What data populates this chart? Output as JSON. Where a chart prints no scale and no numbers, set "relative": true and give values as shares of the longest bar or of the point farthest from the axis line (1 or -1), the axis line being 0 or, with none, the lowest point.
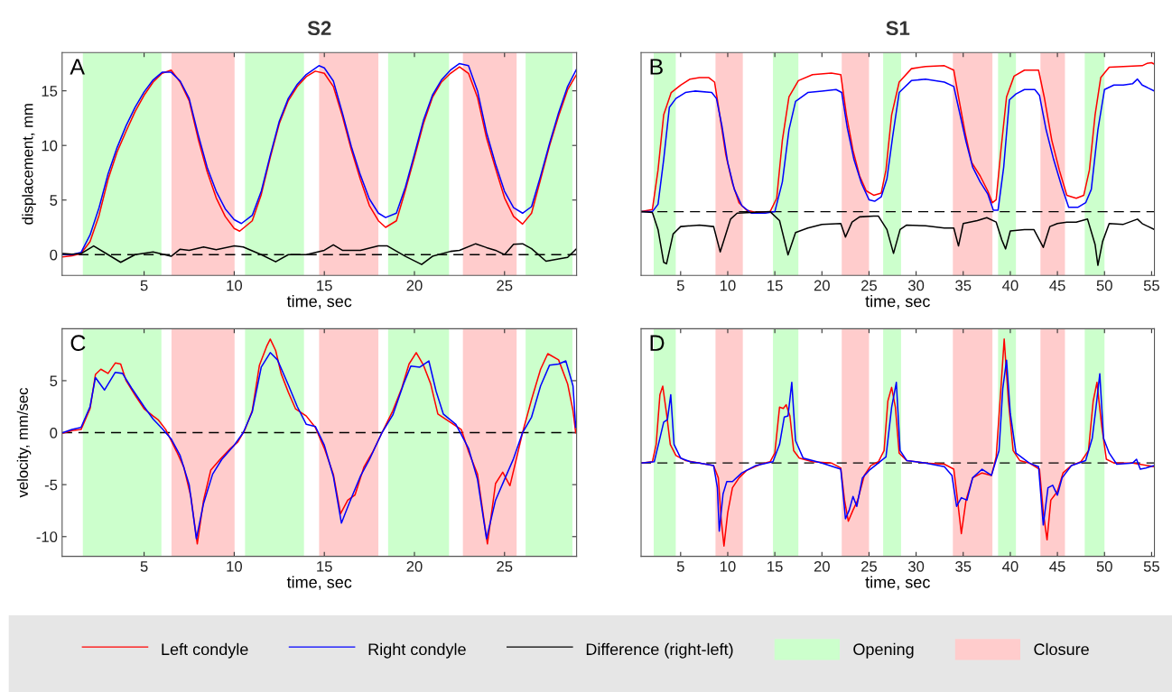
{
  "chart_data": [
    {
      "type": "line",
      "title": "S2",
      "xlabel": "time, sec",
      "ylabel": "displacement, mm",
      "annotations": [
        "A"
      ],
      "legend": "bottom",
      "xlim": [
        0.45,
        29
      ],
      "ylim": [
        -1.9,
        18.5
      ],
      "xticks": [
        5,
        10,
        15,
        20,
        25
      ],
      "yticks": [
        0,
        5,
        10,
        15
      ],
      "series": [
        {
          "name": "Left condyle",
          "color": "#ff0000",
          "x": [
            0.5,
            1,
            1.5,
            2,
            2.5,
            3,
            3.5,
            4,
            4.5,
            5,
            5.5,
            6,
            6.5,
            7,
            7.5,
            8,
            8.5,
            9,
            9.5,
            10,
            10.3,
            11,
            11.5,
            12,
            12.5,
            13,
            13.5,
            14,
            14.5,
            15,
            15.5,
            16,
            16.5,
            17,
            17.5,
            18,
            18.4,
            19,
            19.5,
            20,
            20.5,
            21,
            21.5,
            22,
            22.5,
            23,
            23.5,
            24,
            24.5,
            25,
            25.5,
            26,
            26.5,
            27,
            27.5,
            28,
            28.5,
            29
          ],
          "values": [
            -0.2,
            -0.1,
            0.1,
            1.2,
            3.6,
            6.9,
            9.4,
            11.3,
            13.1,
            14.6,
            15.8,
            16.6,
            16.9,
            15.8,
            14.1,
            10.6,
            7.6,
            5.2,
            3.5,
            2.4,
            2.15,
            3.1,
            5.5,
            8.9,
            12,
            14.1,
            15.4,
            16.3,
            16.8,
            16.6,
            15.4,
            12.7,
            9.6,
            6.9,
            4.5,
            3.1,
            2.5,
            3.1,
            5.9,
            8.9,
            12,
            14.4,
            15.8,
            16.6,
            17.2,
            16.6,
            14.4,
            10.7,
            7.9,
            5.2,
            3.5,
            2.8,
            3.8,
            6.9,
            10,
            12.7,
            15.1,
            16.5
          ]
        },
        {
          "name": "Right condyle",
          "color": "#0000ff",
          "x": [
            0.5,
            1,
            1.5,
            2,
            2.5,
            3,
            3.5,
            4,
            4.5,
            5,
            5.5,
            6,
            6.5,
            7,
            7.5,
            8,
            8.5,
            9,
            9.5,
            10,
            10.4,
            11,
            11.5,
            12,
            12.5,
            13,
            13.5,
            14,
            14.7,
            15,
            15.5,
            16,
            16.5,
            17,
            17.5,
            18,
            18.4,
            19,
            19.5,
            20,
            20.5,
            21,
            21.5,
            22,
            22.5,
            23,
            23.5,
            24,
            24.5,
            25,
            25.5,
            26,
            26.5,
            27,
            27.5,
            28,
            28.5,
            29
          ],
          "values": [
            0.05,
            0,
            0.2,
            1.8,
            4.3,
            7.4,
            9.8,
            11.8,
            13.5,
            14.9,
            16,
            16.7,
            16.7,
            15.9,
            14.3,
            11,
            8,
            5.8,
            4.2,
            3.2,
            2.85,
            3.6,
            5.8,
            9.1,
            12.2,
            14.3,
            15.6,
            16.5,
            17.3,
            17.1,
            15.9,
            13,
            9.9,
            7.3,
            5.1,
            3.8,
            3.4,
            3.8,
            6.2,
            9.2,
            12.3,
            14.6,
            16,
            16.9,
            17.5,
            17.3,
            15,
            11.2,
            8.3,
            5.8,
            4.3,
            3.8,
            4.4,
            7.2,
            10.2,
            13,
            15.4,
            17
          ]
        },
        {
          "name": "Difference (right-left)",
          "color": "#000000",
          "x": [
            0.5,
            1,
            1.5,
            2.2,
            3,
            3.7,
            4.5,
            5.5,
            6.5,
            7,
            7.5,
            8.3,
            9,
            10,
            10.5,
            11.5,
            12.3,
            13,
            14,
            15,
            15.5,
            16,
            17,
            18,
            18.5,
            19.5,
            20.4,
            21,
            22,
            22.5,
            23.4,
            24,
            24.5,
            25,
            25.5,
            26,
            26.5,
            27.3,
            28,
            28.5,
            29
          ],
          "values": [
            0.1,
            0.05,
            0.1,
            0.8,
            0,
            -0.7,
            0,
            0.25,
            -0.15,
            0.5,
            0.4,
            0.7,
            0.45,
            0.8,
            0.7,
            0,
            -0.65,
            0,
            0,
            0.4,
            0.9,
            0.4,
            0.4,
            0.8,
            0.8,
            -0.15,
            -0.9,
            -0.15,
            0.3,
            0.4,
            1,
            0.65,
            0.4,
            0,
            0.95,
            1,
            0.55,
            -0.6,
            -0.4,
            -0.25,
            0.55
          ]
        }
      ],
      "ref_lines": [
        {
          "axis": "y",
          "value": 0,
          "color": "#000000",
          "line_style": "dashed"
        }
      ],
      "bands": [
        {
          "axis": "x",
          "from": 1.6,
          "to": 5.96,
          "color": "#ccffcc",
          "label": "Opening"
        },
        {
          "axis": "x",
          "from": 6.52,
          "to": 10.02,
          "color": "#ffcccc",
          "label": "Closure"
        },
        {
          "axis": "x",
          "from": 10.6,
          "to": 13.87,
          "color": "#ccffcc"
        },
        {
          "axis": "x",
          "from": 14.71,
          "to": 18.0,
          "color": "#ffcccc"
        },
        {
          "axis": "x",
          "from": 18.54,
          "to": 21.92,
          "color": "#ccffcc"
        },
        {
          "axis": "x",
          "from": 22.69,
          "to": 25.67,
          "color": "#ffcccc"
        },
        {
          "axis": "x",
          "from": 26.17,
          "to": 28.77,
          "color": "#ccffcc"
        }
      ]
    },
    {
      "type": "line",
      "title": "S1",
      "xlabel": "time, sec",
      "annotations": [
        "B"
      ],
      "relative": true,
      "xlim": [
        0.8,
        55.3
      ],
      "xticks": [
        5,
        10,
        15,
        20,
        25,
        30,
        35,
        40,
        45,
        50,
        55
      ],
      "series": [
        {
          "color": "#ff0000",
          "x": [
            0.8,
            2,
            2.6,
            3.2,
            4,
            5,
            6,
            7,
            8,
            8.6,
            9.2,
            9.8,
            10.5,
            11.2,
            12,
            13,
            14.5,
            15.2,
            15.8,
            16.5,
            17.5,
            19,
            21,
            22,
            22.6,
            23.3,
            24,
            24.7,
            25.5,
            26.3,
            26.8,
            27.4,
            28.2,
            29.5,
            31,
            33,
            34,
            34.5,
            35.2,
            35.9,
            36.8,
            37.6,
            38.1,
            38.5,
            39,
            39.6,
            40.4,
            41.5,
            43,
            43.6,
            44.4,
            45.2,
            46,
            47,
            47.8,
            48.4,
            49,
            49.6,
            50.5,
            52,
            54,
            54.5,
            55,
            55.3
          ],
          "values": [
            0,
            0.015,
            0.28,
            0.65,
            0.8,
            0.85,
            0.89,
            0.9,
            0.9,
            0.87,
            0.63,
            0.38,
            0.19,
            0.06,
            0.01,
            -0.005,
            0,
            0.09,
            0.48,
            0.77,
            0.88,
            0.92,
            0.93,
            0.92,
            0.65,
            0.41,
            0.24,
            0.14,
            0.11,
            0.125,
            0.28,
            0.65,
            0.87,
            0.96,
            0.975,
            0.98,
            0.95,
            0.77,
            0.53,
            0.33,
            0.24,
            0.14,
            0.06,
            0.08,
            0.41,
            0.77,
            0.91,
            0.95,
            0.95,
            0.77,
            0.48,
            0.28,
            0.11,
            0.09,
            0.11,
            0.28,
            0.65,
            0.9,
            0.97,
            0.975,
            0.98,
            0.995,
            1,
            0.99
          ]
        },
        {
          "color": "#0000ff",
          "x": [
            0.8,
            2,
            2.6,
            3.2,
            3.8,
            4.5,
            5.5,
            6.5,
            8.3,
            8.8,
            9.4,
            10,
            10.7,
            11.5,
            12.5,
            14,
            15,
            15.8,
            16.5,
            17.2,
            18.5,
            20,
            21.5,
            22.1,
            22.7,
            23.4,
            24.2,
            25,
            25.6,
            26.3,
            26.9,
            27.5,
            28.2,
            29.5,
            31,
            33,
            34,
            34.6,
            35.3,
            36,
            36.8,
            37.6,
            38.2,
            38.7,
            39.3,
            39.9,
            40.6,
            41.5,
            42.6,
            43.1,
            43.8,
            44.6,
            45.5,
            46.2,
            47.2,
            48,
            48.6,
            49.3,
            50,
            51,
            52,
            53,
            53.5,
            54,
            55.3
          ],
          "values": [
            0,
            0,
            0.05,
            0.35,
            0.7,
            0.76,
            0.8,
            0.81,
            0.8,
            0.76,
            0.57,
            0.33,
            0.15,
            0.04,
            -0.01,
            -0.01,
            0,
            0.2,
            0.55,
            0.74,
            0.8,
            0.81,
            0.82,
            0.8,
            0.56,
            0.35,
            0.19,
            0.08,
            0.07,
            0.1,
            0.22,
            0.5,
            0.8,
            0.88,
            0.89,
            0.87,
            0.84,
            0.67,
            0.47,
            0.3,
            0.2,
            0.12,
            0.01,
            0.01,
            0.3,
            0.75,
            0.79,
            0.82,
            0.82,
            0.78,
            0.55,
            0.35,
            0.16,
            0.03,
            0.03,
            0.06,
            0.15,
            0.55,
            0.82,
            0.85,
            0.85,
            0.86,
            0.89,
            0.85,
            0.81
          ]
        },
        {
          "color": "#000000",
          "x": [
            0.8,
            2,
            2.6,
            3.2,
            3.5,
            4.2,
            5,
            7,
            8.5,
            9.2,
            9.7,
            10.3,
            11,
            14.5,
            15.5,
            16.4,
            17.2,
            18.5,
            20,
            22,
            22.5,
            23.2,
            24,
            25.5,
            26,
            26.9,
            27.6,
            28.3,
            29,
            31,
            33,
            34,
            34.5,
            35,
            36.5,
            37.5,
            38.5,
            39.1,
            39.5,
            40,
            41.5,
            42.5,
            43.5,
            44.2,
            45,
            46,
            47,
            48.2,
            49,
            49.3,
            49.8,
            50.5,
            52,
            53.5,
            54,
            55.3
          ],
          "values": [
            0,
            -0.005,
            -0.12,
            -0.34,
            -0.35,
            -0.15,
            -0.1,
            -0.09,
            -0.1,
            -0.27,
            -0.17,
            -0.05,
            -0.01,
            0,
            -0.06,
            -0.29,
            -0.14,
            -0.11,
            -0.085,
            -0.08,
            -0.17,
            -0.07,
            -0.035,
            -0.03,
            -0.03,
            -0.12,
            -0.28,
            -0.12,
            -0.09,
            -0.095,
            -0.11,
            -0.11,
            -0.23,
            -0.08,
            -0.06,
            -0.04,
            -0.07,
            -0.19,
            -0.25,
            -0.13,
            -0.12,
            -0.12,
            -0.24,
            -0.1,
            -0.08,
            -0.07,
            -0.07,
            -0.05,
            -0.22,
            -0.36,
            -0.2,
            -0.08,
            -0.085,
            -0.05,
            -0.08,
            -0.12
          ]
        }
      ],
      "ref_lines": [
        {
          "axis": "y",
          "value": 0,
          "color": "#000000",
          "line_style": "dashed"
        }
      ],
      "bands": [
        {
          "axis": "x",
          "from": 2.14,
          "to": 4.48,
          "color": "#ccffcc"
        },
        {
          "axis": "x",
          "from": 8.7,
          "to": 11.6,
          "color": "#ffcccc"
        },
        {
          "axis": "x",
          "from": 14.8,
          "to": 17.5,
          "color": "#ccffcc"
        },
        {
          "axis": "x",
          "from": 22.1,
          "to": 25.0,
          "color": "#ffcccc"
        },
        {
          "axis": "x",
          "from": 26.5,
          "to": 28.4,
          "color": "#ccffcc"
        },
        {
          "axis": "x",
          "from": 33.9,
          "to": 38.1,
          "color": "#ffcccc"
        },
        {
          "axis": "x",
          "from": 38.7,
          "to": 40.6,
          "color": "#ccffcc"
        },
        {
          "axis": "x",
          "from": 43.2,
          "to": 45.8,
          "color": "#ffcccc"
        },
        {
          "axis": "x",
          "from": 47.9,
          "to": 50.0,
          "color": "#ccffcc"
        }
      ]
    },
    {
      "type": "line",
      "xlabel": "time, sec",
      "ylabel": "velocity, mm/sec",
      "annotations": [
        "C"
      ],
      "xlim": [
        0.45,
        29
      ],
      "ylim": [
        -11.9,
        10
      ],
      "xticks": [
        5,
        10,
        15,
        20,
        25
      ],
      "yticks": [
        -10,
        -5,
        0,
        5
      ],
      "series": [
        {
          "color": "#ff0000",
          "x": [
            0.5,
            1,
            1.5,
            2,
            2.3,
            2.6,
            3,
            3.4,
            3.7,
            4,
            4.5,
            5,
            5.5,
            5.8,
            6.2,
            6.8,
            7.2,
            7.6,
            7.95,
            8.3,
            8.7,
            9.2,
            9.8,
            10.2,
            10.6,
            11,
            11.4,
            11.8,
            12,
            12.3,
            12.6,
            13,
            13.4,
            14,
            14.5,
            15,
            15.5,
            15.9,
            16.3,
            16.7,
            17.2,
            17.7,
            18.2,
            18.8,
            19.3,
            19.7,
            20.1,
            20.5,
            20.9,
            21.3,
            22,
            22.6,
            23,
            23.5,
            24.05,
            24.5,
            24.9,
            25.3,
            25.7,
            26,
            26.5,
            27,
            27.4,
            28,
            28.5,
            28.8,
            28.95
          ],
          "values": [
            -0.05,
            0.2,
            0.3,
            2.3,
            5.6,
            6.1,
            5.7,
            6.7,
            6.6,
            5,
            3.6,
            2.3,
            1.6,
            1.2,
            0.3,
            -1.8,
            -3.3,
            -6.2,
            -10.7,
            -6.5,
            -3.6,
            -2.6,
            -1.5,
            -0.9,
            0.3,
            2.1,
            6.5,
            8.3,
            9,
            7.9,
            5.7,
            3.9,
            2.3,
            1.6,
            0.5,
            -1.5,
            -4,
            -7.8,
            -6.5,
            -6,
            -3.3,
            -1.8,
            0,
            2.1,
            4.3,
            6.6,
            7.7,
            6.5,
            4.7,
            1.8,
            1,
            0.3,
            -1.8,
            -4,
            -10.7,
            -4.9,
            -3.8,
            -5.1,
            -2.2,
            0,
            3.2,
            6.1,
            7.6,
            7,
            4.7,
            2.1,
            0
          ]
        },
        {
          "color": "#0000ff",
          "x": [
            0.5,
            1,
            1.5,
            2,
            2.3,
            2.8,
            3.4,
            3.8,
            4.3,
            5,
            5.5,
            6,
            6.5,
            7,
            7.5,
            7.9,
            8.3,
            8.8,
            9.3,
            10,
            10.5,
            11,
            11.5,
            12,
            12.4,
            13,
            13.5,
            14,
            14.5,
            15,
            15.5,
            15.95,
            16.4,
            17,
            17.5,
            18.2,
            18.8,
            19.4,
            19.8,
            20.3,
            20.8,
            21.2,
            21.6,
            22.3,
            23,
            23.5,
            24,
            24.5,
            25,
            25.5,
            26,
            26.5,
            27,
            27.5,
            28,
            28.4,
            28.8,
            28.95
          ],
          "values": [
            0,
            0.3,
            0.5,
            2.5,
            5.3,
            4.1,
            5.8,
            5.7,
            4.3,
            2.5,
            1.3,
            0.4,
            -0.6,
            -2.2,
            -5,
            -10.2,
            -6.8,
            -4,
            -2.6,
            -1.2,
            0,
            2,
            6.3,
            7.7,
            7,
            4.6,
            2.5,
            0.8,
            0.6,
            -1.2,
            -4.2,
            -8.7,
            -6.7,
            -4.2,
            -2.6,
            0,
            1.7,
            4.7,
            6.4,
            6.3,
            6.9,
            4,
            1.8,
            0.8,
            -1.5,
            -4.5,
            -10.2,
            -6.5,
            -4.5,
            -2.5,
            0,
            1.5,
            4.5,
            6.5,
            6.6,
            6.9,
            4.5,
            0.5
          ]
        }
      ],
      "ref_lines": [
        {
          "axis": "y",
          "value": 0,
          "color": "#000000",
          "line_style": "dashed"
        }
      ],
      "bands": [
        {
          "axis": "x",
          "from": 1.6,
          "to": 5.96,
          "color": "#ccffcc"
        },
        {
          "axis": "x",
          "from": 6.52,
          "to": 10.02,
          "color": "#ffcccc"
        },
        {
          "axis": "x",
          "from": 10.6,
          "to": 13.87,
          "color": "#ccffcc"
        },
        {
          "axis": "x",
          "from": 14.71,
          "to": 18.0,
          "color": "#ffcccc"
        },
        {
          "axis": "x",
          "from": 18.54,
          "to": 21.92,
          "color": "#ccffcc"
        },
        {
          "axis": "x",
          "from": 22.69,
          "to": 25.67,
          "color": "#ffcccc"
        },
        {
          "axis": "x",
          "from": 26.17,
          "to": 28.77,
          "color": "#ccffcc"
        }
      ]
    },
    {
      "type": "line",
      "xlabel": "time, sec",
      "annotations": [
        "D"
      ],
      "relative": true,
      "xlim": [
        0.8,
        55.3
      ],
      "xticks": [
        5,
        10,
        15,
        20,
        25,
        30,
        35,
        40,
        45,
        50,
        55
      ],
      "series": [
        {
          "color": "#ff0000",
          "x": [
            0.8,
            2,
            2.4,
            2.8,
            3.1,
            3.5,
            3.9,
            4.5,
            5.5,
            7,
            8.5,
            9,
            9.3,
            9.6,
            10,
            10.5,
            11.2,
            12,
            13.5,
            14.5,
            15,
            15.5,
            15.9,
            16.2,
            16.6,
            17,
            17.6,
            19,
            21,
            22,
            22.4,
            22.8,
            23.3,
            23.8,
            24.5,
            25.2,
            26,
            26.6,
            27,
            27.4,
            27.8,
            28.2,
            29,
            31,
            33,
            34,
            34.4,
            34.8,
            35.3,
            36,
            37,
            38,
            38.5,
            39,
            39.35,
            39.8,
            40.3,
            41,
            42,
            43.1,
            43.5,
            43.9,
            44.3,
            45,
            45.6,
            46.5,
            47.5,
            48.3,
            48.8,
            49.2,
            49.7,
            50.2,
            51,
            53,
            55.3
          ],
          "values": [
            0,
            0.01,
            0.15,
            0.55,
            0.62,
            0.4,
            0.15,
            0.06,
            0.02,
            0,
            -0.02,
            -0.12,
            -0.45,
            -0.67,
            -0.4,
            -0.2,
            -0.12,
            -0.06,
            -0.01,
            0.01,
            0.08,
            0.45,
            0.44,
            0.47,
            0.38,
            0.1,
            0.04,
            0.01,
            0,
            -0.04,
            -0.3,
            -0.47,
            -0.38,
            -0.3,
            -0.1,
            -0.02,
            0.01,
            0.1,
            0.5,
            0.61,
            0.45,
            0.08,
            0.02,
            0,
            -0.01,
            -0.05,
            -0.3,
            -0.57,
            -0.3,
            -0.12,
            -0.08,
            -0.1,
            0.05,
            0.6,
            1,
            0.5,
            0.1,
            0.02,
            0,
            -0.05,
            -0.4,
            -0.62,
            -0.3,
            -0.23,
            -0.08,
            -0.02,
            0.01,
            0.1,
            0.5,
            0.65,
            0.3,
            0.03,
            0,
            0,
            -0.03
          ]
        },
        {
          "color": "#0000ff",
          "x": [
            0.8,
            2.2,
            2.8,
            3.2,
            3.6,
            3.95,
            4.3,
            5,
            6,
            7,
            8.5,
            8.9,
            9.1,
            9.5,
            9.9,
            10.5,
            11.5,
            13,
            14.8,
            15.5,
            16,
            16.4,
            16.8,
            17.2,
            18,
            20,
            22,
            22.5,
            22.9,
            23.3,
            23.7,
            24.3,
            25,
            26,
            26.8,
            27.4,
            27.9,
            28.3,
            29,
            31,
            33,
            33.8,
            34.3,
            34.8,
            35.4,
            36,
            37,
            37.6,
            38,
            38.8,
            39.2,
            39.6,
            40,
            40.6,
            41.3,
            42,
            43,
            43.5,
            44,
            44.5,
            45,
            45.5,
            46.5,
            48,
            48.7,
            49.1,
            49.5,
            49.9,
            50.5,
            51.3,
            53,
            53.4,
            53.8,
            54.4,
            55.3
          ],
          "values": [
            0,
            0.01,
            0.2,
            0.33,
            0.35,
            0.55,
            0.15,
            0.04,
            0.01,
            0,
            -0.02,
            -0.2,
            -0.55,
            -0.25,
            -0.15,
            -0.15,
            -0.08,
            -0.02,
            0.01,
            0.15,
            0.37,
            0.38,
            0.65,
            0.18,
            0.04,
            0,
            -0.05,
            -0.45,
            -0.38,
            -0.27,
            -0.35,
            -0.12,
            -0.06,
            0,
            0.05,
            0.45,
            0.65,
            0.1,
            0.02,
            0,
            -0.03,
            -0.1,
            -0.35,
            -0.28,
            -0.3,
            -0.12,
            -0.05,
            -0.08,
            -0.1,
            0.1,
            0.6,
            0.83,
            0.4,
            0.08,
            0.04,
            0,
            -0.03,
            -0.5,
            -0.2,
            -0.18,
            -0.26,
            -0.12,
            -0.02,
            0.02,
            0.2,
            0.45,
            0.72,
            0.2,
            0.08,
            -0.01,
            0,
            0.03,
            -0.05,
            -0.04,
            -0.02
          ]
        }
      ],
      "ref_lines": [
        {
          "axis": "y",
          "value": 0,
          "color": "#000000",
          "line_style": "dashed"
        }
      ],
      "bands": [
        {
          "axis": "x",
          "from": 2.14,
          "to": 4.48,
          "color": "#ccffcc"
        },
        {
          "axis": "x",
          "from": 8.7,
          "to": 11.6,
          "color": "#ffcccc"
        },
        {
          "axis": "x",
          "from": 14.8,
          "to": 17.5,
          "color": "#ccffcc"
        },
        {
          "axis": "x",
          "from": 22.1,
          "to": 25.0,
          "color": "#ffcccc"
        },
        {
          "axis": "x",
          "from": 26.5,
          "to": 28.4,
          "color": "#ccffcc"
        },
        {
          "axis": "x",
          "from": 33.9,
          "to": 38.1,
          "color": "#ffcccc"
        },
        {
          "axis": "x",
          "from": 38.7,
          "to": 40.6,
          "color": "#ccffcc"
        },
        {
          "axis": "x",
          "from": 43.2,
          "to": 45.8,
          "color": "#ffcccc"
        },
        {
          "axis": "x",
          "from": 47.9,
          "to": 50.0,
          "color": "#ccffcc"
        }
      ]
    }
  ]
}
